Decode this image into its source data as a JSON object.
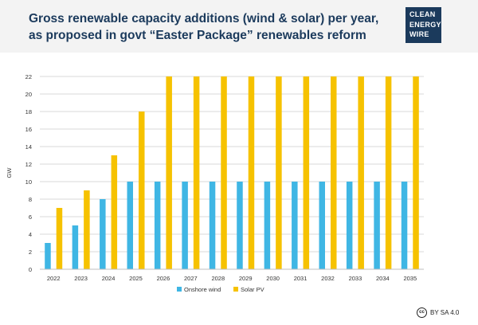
{
  "header": {
    "title_line1": "Gross renewable capacity additions (wind & solar) per year,",
    "title_line2": "as proposed in govt “Easter Package” renewables reform"
  },
  "logo": {
    "line1": "CLEAN",
    "line2": "ENERGY",
    "line3": "WIRE"
  },
  "license": {
    "icon": "cc",
    "text": "BY SA 4.0"
  },
  "colors": {
    "wind": "#3fb6e4",
    "solar": "#f6c200",
    "grid": "#d9d9d9",
    "axis_text": "#333333"
  },
  "chart_data": {
    "type": "bar",
    "title": "",
    "xlabel": "",
    "ylabel": "GW",
    "ylim": [
      0,
      22
    ],
    "yticks": [
      0,
      2,
      4,
      6,
      8,
      10,
      12,
      14,
      16,
      18,
      20,
      22
    ],
    "categories": [
      "2022",
      "2023",
      "2024",
      "2025",
      "2026",
      "2027",
      "2028",
      "2029",
      "2030",
      "2031",
      "2032",
      "2033",
      "2034",
      "2035"
    ],
    "series": [
      {
        "name": "Onshore wind",
        "values": [
          3,
          5,
          8,
          10,
          10,
          10,
          10,
          10,
          10,
          10,
          10,
          10,
          10,
          10
        ]
      },
      {
        "name": "Solar PV",
        "values": [
          7,
          9,
          13,
          18,
          22,
          22,
          22,
          22,
          22,
          22,
          22,
          22,
          22,
          22
        ]
      }
    ],
    "legend_position": "bottom"
  }
}
